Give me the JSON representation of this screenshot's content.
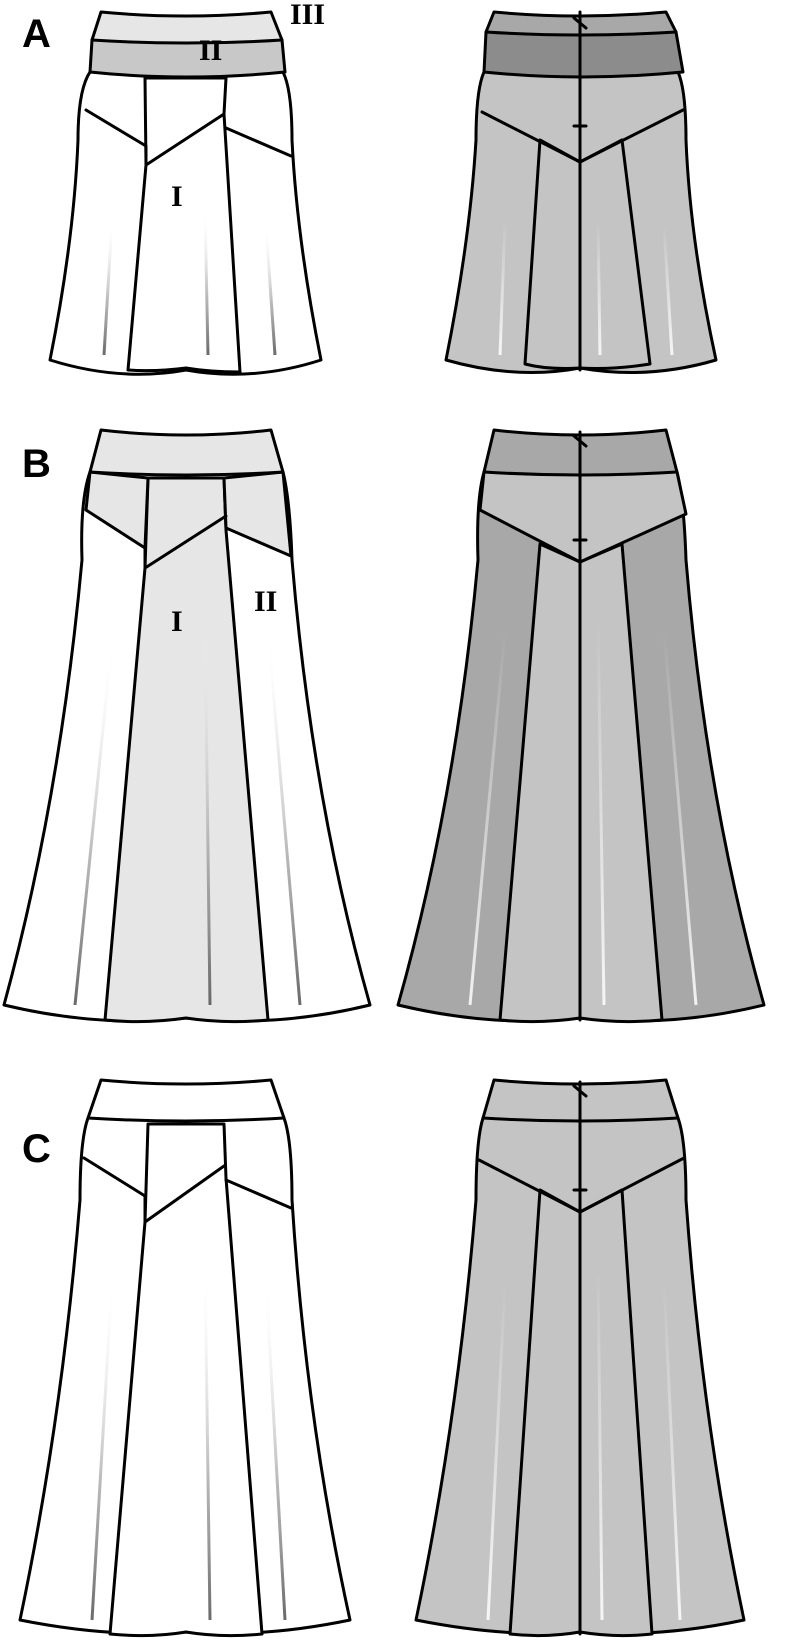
{
  "views": [
    {
      "id": "a",
      "label": "A",
      "piece_labels": [
        "III",
        "II",
        "I"
      ],
      "front_colors": {
        "waistband": "#e6e6e6",
        "yoke": "#c8c8c8",
        "body": "#ffffff",
        "center": "#ffffff",
        "side": "#ffffff"
      },
      "back_colors": {
        "waistband": "#a8a8a8",
        "yoke": "#8c8c8c",
        "body": "#c4c4c4",
        "center": "#c4c4c4",
        "side": "#c4c4c4"
      }
    },
    {
      "id": "b",
      "label": "B",
      "piece_labels": [
        "I",
        "II"
      ],
      "front_colors": {
        "waistband": "#e6e6e6",
        "yoke": "#e6e6e6",
        "body": "#ffffff",
        "center": "#e6e6e6",
        "side": "#ffffff"
      },
      "back_colors": {
        "waistband": "#a8a8a8",
        "yoke": "#c4c4c4",
        "body": "#a8a8a8",
        "center": "#c4c4c4",
        "side": "#a8a8a8"
      }
    },
    {
      "id": "c",
      "label": "C",
      "piece_labels": [],
      "front_colors": {
        "waistband": "#ffffff",
        "yoke": "#ffffff",
        "body": "#ffffff",
        "center": "#ffffff",
        "side": "#ffffff"
      },
      "back_colors": {
        "waistband": "#c4c4c4",
        "yoke": "#c4c4c4",
        "body": "#c4c4c4",
        "center": "#c4c4c4",
        "side": "#c4c4c4"
      }
    }
  ]
}
